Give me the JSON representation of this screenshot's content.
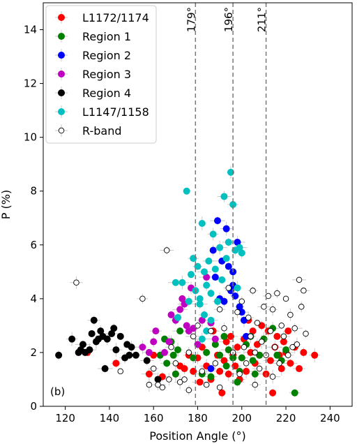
{
  "chart_data": {
    "type": "scatter",
    "title": "",
    "xlabel": "Position Angle (°)",
    "ylabel": "P (%)",
    "xlim": [
      110,
      250
    ],
    "ylim": [
      0,
      15
    ],
    "xticks": [
      120,
      140,
      160,
      180,
      200,
      220,
      240
    ],
    "yticks": [
      0,
      2,
      4,
      6,
      8,
      10,
      12,
      14
    ],
    "panel_label": "(b)",
    "grid": false,
    "legend_position": "upper-left",
    "vertical_lines": [
      {
        "x": 179,
        "label": "179°"
      },
      {
        "x": 196,
        "label": "196°"
      },
      {
        "x": 211,
        "label": "211°"
      }
    ],
    "series": [
      {
        "name": "L1172/1174",
        "color": "#ff0000",
        "marker": "filled",
        "points": [
          [
            130,
            2.0
          ],
          [
            143,
            1.6
          ],
          [
            158,
            1.2
          ],
          [
            160,
            1.9
          ],
          [
            164,
            1.1
          ],
          [
            170,
            1.2
          ],
          [
            172,
            1.5
          ],
          [
            174,
            1.4
          ],
          [
            176,
            1.9
          ],
          [
            178,
            1.3
          ],
          [
            180,
            1.8
          ],
          [
            181,
            0.9
          ],
          [
            182,
            2.2
          ],
          [
            184,
            1.5
          ],
          [
            186,
            1.0
          ],
          [
            187,
            2.8
          ],
          [
            189,
            1.9
          ],
          [
            190,
            1.3
          ],
          [
            191,
            0.5
          ],
          [
            192,
            1.7
          ],
          [
            193,
            2.4
          ],
          [
            194,
            1.2
          ],
          [
            195,
            2.6
          ],
          [
            196,
            1.9
          ],
          [
            197,
            1.5
          ],
          [
            198,
            2.2
          ],
          [
            199,
            1.0
          ],
          [
            200,
            1.8
          ],
          [
            201,
            2.5
          ],
          [
            202,
            1.3
          ],
          [
            203,
            3.2
          ],
          [
            204,
            2.0
          ],
          [
            205,
            2.8
          ],
          [
            206,
            1.6
          ],
          [
            207,
            2.3
          ],
          [
            208,
            1.9
          ],
          [
            209,
            3.0
          ],
          [
            210,
            2.5
          ],
          [
            211,
            1.2
          ],
          [
            212,
            2.8
          ],
          [
            213,
            1.7
          ],
          [
            214,
            0.5
          ],
          [
            215,
            2.2
          ],
          [
            216,
            2.6
          ],
          [
            217,
            1.9
          ],
          [
            218,
            1.4
          ],
          [
            219,
            2.4
          ],
          [
            220,
            2.0
          ],
          [
            221,
            2.8
          ],
          [
            222,
            1.6
          ],
          [
            224,
            2.2
          ],
          [
            226,
            1.4
          ],
          [
            228,
            2.0
          ],
          [
            233,
            1.9
          ]
        ]
      },
      {
        "name": "Region 1",
        "color": "#008000",
        "marker": "filled",
        "points": [
          [
            163,
            1.9
          ],
          [
            165,
            2.5
          ],
          [
            166,
            1.6
          ],
          [
            168,
            2.4
          ],
          [
            169,
            1.9
          ],
          [
            170,
            1.2
          ],
          [
            171,
            2.1
          ],
          [
            172,
            2.8
          ],
          [
            178,
            1.8
          ],
          [
            182,
            1.2
          ],
          [
            184,
            2.0
          ],
          [
            186,
            1.1
          ],
          [
            188,
            2.3
          ],
          [
            190,
            1.9
          ],
          [
            192,
            2.6
          ],
          [
            193,
            1.5
          ],
          [
            194,
            2.1
          ],
          [
            196,
            1.8
          ],
          [
            198,
            0.9
          ],
          [
            199,
            1.3
          ],
          [
            200,
            1.8
          ],
          [
            202,
            2.3
          ],
          [
            204,
            2.6
          ],
          [
            205,
            1.7
          ],
          [
            206,
            1.2
          ],
          [
            208,
            1.9
          ],
          [
            210,
            2.5
          ],
          [
            214,
            2.9
          ],
          [
            216,
            1.9
          ],
          [
            218,
            1.7
          ],
          [
            220,
            2.1
          ],
          [
            224,
            0.5
          ]
        ]
      },
      {
        "name": "Region 2",
        "color": "#0000ff",
        "marker": "filled",
        "points": [
          [
            186,
            1.4
          ],
          [
            187,
            5.8
          ],
          [
            188,
            4.8
          ],
          [
            189,
            6.9
          ],
          [
            190,
            4.0
          ],
          [
            191,
            5.4
          ],
          [
            192,
            3.9
          ],
          [
            193,
            6.6
          ],
          [
            194,
            5.2
          ],
          [
            195,
            4.3
          ],
          [
            196,
            5.0
          ],
          [
            197,
            4.1
          ],
          [
            198,
            6.1
          ],
          [
            199,
            3.7
          ],
          [
            200,
            3.5
          ],
          [
            201,
            3.2
          ],
          [
            202,
            2.6
          ],
          [
            196,
            4.5
          ]
        ]
      },
      {
        "name": "Region 3",
        "color": "#c000c0",
        "marker": "filled",
        "points": [
          [
            155,
            2.2
          ],
          [
            158,
            2.0
          ],
          [
            160,
            2.4
          ],
          [
            161,
            2.8
          ],
          [
            165,
            2.0
          ],
          [
            167,
            2.4
          ],
          [
            168,
            3.4
          ],
          [
            170,
            3.2
          ],
          [
            172,
            3.6
          ],
          [
            173,
            4.0
          ],
          [
            174,
            3.8
          ],
          [
            175,
            3.0
          ],
          [
            176,
            2.8
          ],
          [
            177,
            4.4
          ],
          [
            178,
            2.9
          ],
          [
            180,
            2.3
          ],
          [
            182,
            3.2
          ],
          [
            184,
            4.8
          ],
          [
            186,
            3.1
          ],
          [
            188,
            2.5
          ]
        ]
      },
      {
        "name": "Region 4",
        "color": "#000000",
        "marker": "filled",
        "points": [
          [
            117,
            1.9
          ],
          [
            123,
            2.5
          ],
          [
            126,
            2.0
          ],
          [
            127,
            2.1
          ],
          [
            128,
            2.3
          ],
          [
            129,
            2.0
          ],
          [
            131,
            2.1
          ],
          [
            132,
            2.7
          ],
          [
            133,
            3.2
          ],
          [
            134,
            2.4
          ],
          [
            135,
            2.5
          ],
          [
            136,
            2.8
          ],
          [
            137,
            2.6
          ],
          [
            138,
            1.4
          ],
          [
            139,
            2.5
          ],
          [
            141,
            2.7
          ],
          [
            142,
            2.9
          ],
          [
            143,
            2.1
          ],
          [
            145,
            2.6
          ],
          [
            147,
            1.8
          ],
          [
            148,
            2.3
          ],
          [
            149,
            1.9
          ],
          [
            150,
            2.2
          ],
          [
            152,
            1.9
          ],
          [
            157,
            1.7
          ],
          [
            162,
            1.0
          ]
        ]
      },
      {
        "name": "L1147/1158",
        "color": "#00c0c0",
        "marker": "filled",
        "points": [
          [
            170,
            4.6
          ],
          [
            171,
            3.3
          ],
          [
            173,
            4.6
          ],
          [
            175,
            8.0
          ],
          [
            176,
            3.9
          ],
          [
            177,
            4.9
          ],
          [
            178,
            5.5
          ],
          [
            179,
            4.3
          ],
          [
            180,
            5.2
          ],
          [
            181,
            3.8
          ],
          [
            182,
            6.8
          ],
          [
            183,
            5.0
          ],
          [
            184,
            4.5
          ],
          [
            185,
            5.4
          ],
          [
            186,
            4.2
          ],
          [
            187,
            6.4
          ],
          [
            188,
            5.1
          ],
          [
            189,
            3.9
          ],
          [
            190,
            5.9
          ],
          [
            191,
            4.7
          ],
          [
            192,
            7.8
          ],
          [
            193,
            5.5
          ],
          [
            194,
            6.1
          ],
          [
            195,
            8.7
          ],
          [
            196,
            7.5
          ],
          [
            197,
            5.8
          ],
          [
            198,
            4.4
          ],
          [
            199,
            5.9
          ],
          [
            200,
            5.7
          ],
          [
            186,
            3.2
          ],
          [
            184,
            2.8
          ],
          [
            182,
            2.5
          ],
          [
            181,
            4.0
          ],
          [
            183,
            3.4
          ]
        ]
      },
      {
        "name": "R-band",
        "color": "#000000",
        "marker": "open",
        "points": [
          [
            125,
            4.6
          ],
          [
            145,
            1.3
          ],
          [
            155,
            4.0
          ],
          [
            158,
            0.8
          ],
          [
            160,
            1.4
          ],
          [
            162,
            0.8
          ],
          [
            164,
            0.7
          ],
          [
            166,
            5.8
          ],
          [
            167,
            1.0
          ],
          [
            168,
            2.2
          ],
          [
            170,
            1.6
          ],
          [
            172,
            0.9
          ],
          [
            174,
            1.0
          ],
          [
            176,
            2.0
          ],
          [
            178,
            2.6
          ],
          [
            180,
            3.0
          ],
          [
            182,
            1.3
          ],
          [
            184,
            0.8
          ],
          [
            186,
            2.8
          ],
          [
            188,
            1.6
          ],
          [
            190,
            3.6
          ],
          [
            192,
            2.9
          ],
          [
            194,
            4.4
          ],
          [
            196,
            2.0
          ],
          [
            198,
            3.5
          ],
          [
            199,
            1.2
          ],
          [
            200,
            3.9
          ],
          [
            201,
            2.2
          ],
          [
            202,
            1.6
          ],
          [
            203,
            3.3
          ],
          [
            204,
            2.6
          ],
          [
            205,
            4.3
          ],
          [
            206,
            2.0
          ],
          [
            207,
            3.1
          ],
          [
            208,
            1.4
          ],
          [
            209,
            2.4
          ],
          [
            210,
            3.7
          ],
          [
            211,
            1.9
          ],
          [
            212,
            4.1
          ],
          [
            213,
            2.8
          ],
          [
            214,
            3.6
          ],
          [
            215,
            2.2
          ],
          [
            216,
            4.2
          ],
          [
            217,
            1.6
          ],
          [
            218,
            3.0
          ],
          [
            219,
            2.6
          ],
          [
            220,
            4.0
          ],
          [
            221,
            1.9
          ],
          [
            222,
            3.4
          ],
          [
            223,
            2.2
          ],
          [
            224,
            2.9
          ],
          [
            225,
            2.3
          ],
          [
            226,
            4.7
          ],
          [
            227,
            3.7
          ],
          [
            228,
            4.3
          ],
          [
            229,
            2.7
          ],
          [
            206,
            0.8
          ],
          [
            190,
            0.7
          ],
          [
            176,
            0.6
          ],
          [
            214,
            1.1
          ]
        ]
      }
    ]
  }
}
